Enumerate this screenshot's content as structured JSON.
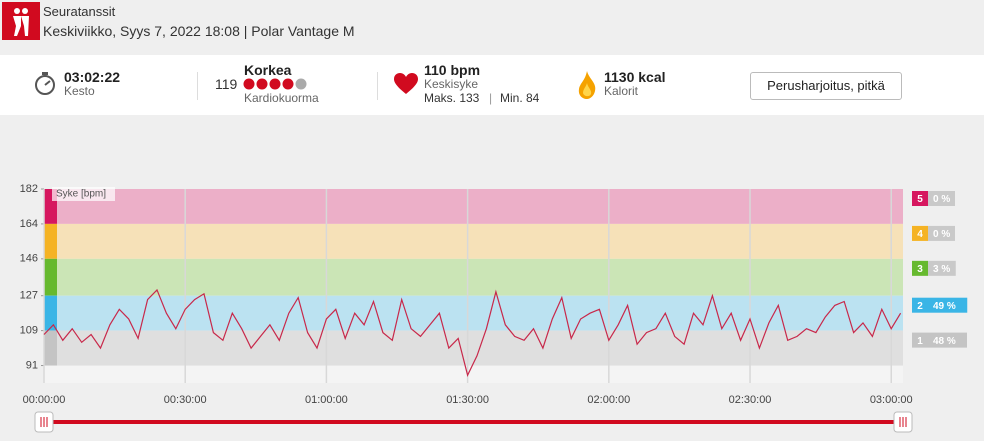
{
  "header": {
    "title": "Seuratanssit",
    "subtitle": "Keskiviikko, Syys 7, 2022 18:08 | Polar Vantage M"
  },
  "stats": {
    "duration": {
      "value": "03:02:22",
      "label": "Kesto"
    },
    "cardio_load": {
      "value": "119",
      "level": "Korkea",
      "label": "Kardiokuorma",
      "rating": 4,
      "rating_max": 5
    },
    "heart_rate": {
      "value": "110 bpm",
      "label": "Keskisyke",
      "max": "Maks. 133",
      "separator": "|",
      "min": "Min. 84"
    },
    "calories": {
      "value": "1130 kcal",
      "label": "Kalorit"
    },
    "button": "Perusharjoitus, pitkä"
  },
  "chart_data": {
    "type": "line",
    "y_label": "Syke [bpm]",
    "x": [
      0,
      2,
      4,
      6,
      8,
      10,
      12,
      14,
      16,
      18,
      20,
      22,
      24,
      26,
      28,
      30,
      32,
      34,
      36,
      38,
      40,
      42,
      44,
      46,
      48,
      50,
      52,
      54,
      56,
      58,
      60,
      62,
      64,
      66,
      68,
      70,
      72,
      74,
      76,
      78,
      80,
      82,
      84,
      86,
      88,
      90,
      92,
      94,
      96,
      98,
      100,
      102,
      104,
      106,
      108,
      110,
      112,
      114,
      116,
      118,
      120,
      122,
      124,
      126,
      128,
      130,
      132,
      134,
      136,
      138,
      140,
      142,
      144,
      146,
      148,
      150,
      152,
      154,
      156,
      158,
      160,
      162,
      164,
      166,
      168,
      170,
      172,
      174,
      176,
      178,
      180,
      182
    ],
    "series": [
      {
        "name": "Syke",
        "color": "#c8284a",
        "values": [
          107,
          112,
          104,
          110,
          103,
          107,
          100,
          112,
          120,
          115,
          105,
          125,
          130,
          118,
          110,
          120,
          125,
          128,
          108,
          104,
          118,
          110,
          100,
          106,
          112,
          104,
          118,
          126,
          108,
          100,
          115,
          120,
          105,
          118,
          112,
          124,
          108,
          104,
          125,
          110,
          106,
          112,
          118,
          100,
          105,
          86,
          96,
          110,
          129,
          112,
          106,
          104,
          110,
          100,
          115,
          126,
          105,
          115,
          118,
          120,
          104,
          112,
          122,
          102,
          108,
          110,
          118,
          106,
          102,
          118,
          112,
          127,
          110,
          118,
          104,
          115,
          100,
          113,
          122,
          104,
          106,
          110,
          108,
          116,
          122,
          124,
          108,
          113,
          106,
          120,
          110,
          118
        ]
      }
    ],
    "zones": [
      {
        "name": "5",
        "color": "#d6175f",
        "band_color": "#ecafc8",
        "box_color": "#c9c9c9",
        "value": 0,
        "value_label": "0 %"
      },
      {
        "name": "4",
        "color": "#f5b324",
        "band_color": "#f6e1b8",
        "box_color": "#c9c9c9",
        "value": 0,
        "value_label": "0 %"
      },
      {
        "name": "3",
        "color": "#66b92e",
        "band_color": "#cbe5b6",
        "box_color": "#c9c9c9",
        "value": 3,
        "value_label": "3 %"
      },
      {
        "name": "2",
        "color": "#3ab5e6",
        "band_color": "#bbe2f1",
        "box_color": "#3ab5e6",
        "value": 49,
        "value_label": "49 %"
      },
      {
        "name": "1",
        "color": "#c4c4c4",
        "band_color": "#dfdfdf",
        "box_color": "#c4c4c4",
        "value": 48,
        "value_label": "48 %"
      }
    ],
    "xlim": [
      0,
      182.5
    ],
    "ylim": [
      82,
      182
    ],
    "yticks": [
      91,
      109,
      127,
      146,
      164,
      182
    ],
    "xticks": [
      {
        "value": 0,
        "label": "00:00:00"
      },
      {
        "value": 30,
        "label": "00:30:00"
      },
      {
        "value": 60,
        "label": "01:00:00"
      },
      {
        "value": 90,
        "label": "01:30:00"
      },
      {
        "value": 120,
        "label": "02:00:00"
      },
      {
        "value": 150,
        "label": "02:30:00"
      },
      {
        "value": 180,
        "label": "03:00:00"
      }
    ],
    "grid": true
  }
}
